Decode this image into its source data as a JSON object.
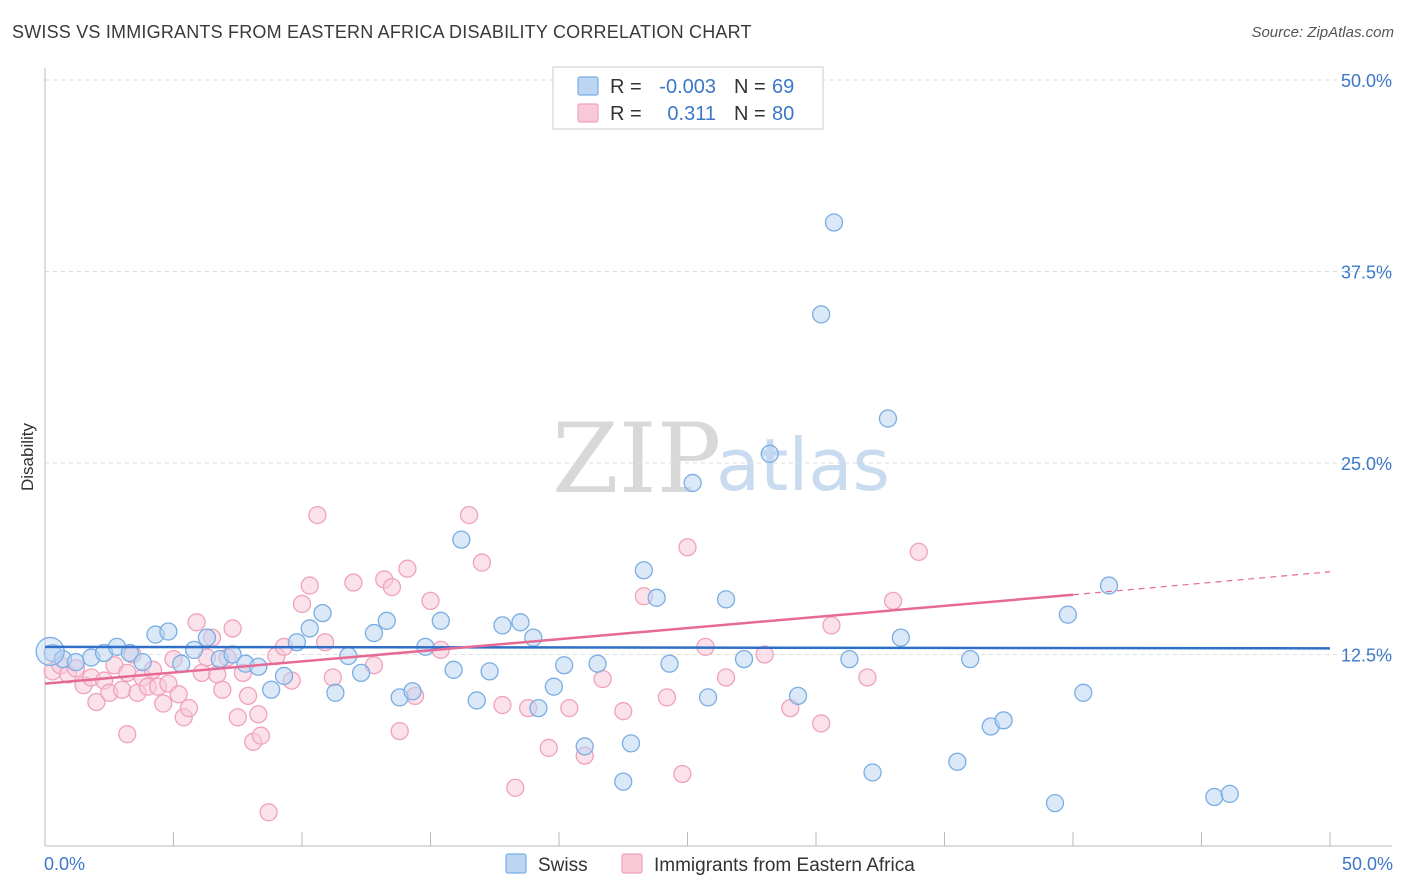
{
  "title": "SWISS VS IMMIGRANTS FROM EASTERN AFRICA DISABILITY CORRELATION CHART",
  "source": "Source: ZipAtlas.com",
  "watermark": {
    "zip": "ZIP",
    "atlas": "atlas"
  },
  "colors": {
    "swiss": "#7aaee3",
    "swiss_line": "#2f6fc7",
    "eafrica": "#f0a2bb",
    "eafrica_line": "#e66a96",
    "axis_text": "#3c78c8",
    "grid": "#dddddd"
  },
  "legend_top": {
    "rows": [
      {
        "r_label": "R =",
        "r_value": "-0.003",
        "n_label": "N =",
        "n_value": "69",
        "series": "swiss"
      },
      {
        "r_label": "R =",
        "r_value": "0.311",
        "n_label": "N =",
        "n_value": "80",
        "series": "eafrica"
      }
    ]
  },
  "chart_data": {
    "type": "scatter",
    "title": "SWISS VS IMMIGRANTS FROM EASTERN AFRICA DISABILITY CORRELATION CHART",
    "xlabel": "",
    "ylabel": "Disability",
    "xlim": [
      0,
      50
    ],
    "ylim": [
      0,
      50
    ],
    "y_ticks": [
      {
        "value": 12.5,
        "label": "12.5%"
      },
      {
        "value": 25.0,
        "label": "25.0%"
      },
      {
        "value": 37.5,
        "label": "37.5%"
      },
      {
        "value": 50.0,
        "label": "50.0%"
      }
    ],
    "x_tick_labels": [
      {
        "value": 0,
        "label": "0.0%"
      },
      {
        "value": 50,
        "label": "50.0%"
      }
    ],
    "grid": true,
    "legend_placement": "bottom-center",
    "series": [
      {
        "name": "Swiss",
        "key": "swiss",
        "trend": {
          "x": [
            0,
            50
          ],
          "y": [
            13.0,
            12.9
          ]
        },
        "points": [
          [
            0.3,
            12.6
          ],
          [
            0.7,
            12.2
          ],
          [
            1.2,
            12.0
          ],
          [
            1.8,
            12.3
          ],
          [
            2.3,
            12.6
          ],
          [
            2.8,
            13.0
          ],
          [
            3.3,
            12.6
          ],
          [
            3.8,
            12.0
          ],
          [
            4.3,
            13.8
          ],
          [
            4.8,
            14.0
          ],
          [
            5.3,
            11.9
          ],
          [
            5.8,
            12.8
          ],
          [
            6.3,
            13.6
          ],
          [
            6.8,
            12.2
          ],
          [
            7.3,
            12.5
          ],
          [
            7.8,
            11.9
          ],
          [
            8.3,
            11.7
          ],
          [
            8.8,
            10.2
          ],
          [
            9.3,
            11.1
          ],
          [
            9.8,
            13.3
          ],
          [
            10.3,
            14.2
          ],
          [
            10.8,
            15.2
          ],
          [
            11.3,
            10.0
          ],
          [
            11.8,
            12.4
          ],
          [
            12.3,
            11.3
          ],
          [
            12.8,
            13.9
          ],
          [
            13.3,
            14.7
          ],
          [
            13.8,
            9.7
          ],
          [
            14.3,
            10.1
          ],
          [
            14.8,
            13.0
          ],
          [
            15.4,
            14.7
          ],
          [
            15.9,
            11.5
          ],
          [
            16.2,
            20.0
          ],
          [
            16.8,
            9.5
          ],
          [
            17.3,
            11.4
          ],
          [
            17.8,
            14.4
          ],
          [
            18.5,
            14.6
          ],
          [
            19.0,
            13.6
          ],
          [
            19.2,
            9.0
          ],
          [
            19.8,
            10.4
          ],
          [
            20.2,
            11.8
          ],
          [
            21.0,
            6.5
          ],
          [
            21.5,
            11.9
          ],
          [
            22.5,
            4.2
          ],
          [
            22.8,
            6.7
          ],
          [
            23.3,
            18.0
          ],
          [
            24.3,
            11.9
          ],
          [
            23.8,
            16.2
          ],
          [
            25.2,
            23.7
          ],
          [
            25.8,
            9.7
          ],
          [
            26.5,
            16.1
          ],
          [
            27.2,
            12.2
          ],
          [
            28.2,
            25.6
          ],
          [
            29.3,
            9.8
          ],
          [
            30.2,
            34.7
          ],
          [
            30.7,
            40.7
          ],
          [
            31.3,
            12.2
          ],
          [
            32.2,
            4.8
          ],
          [
            32.8,
            27.9
          ],
          [
            33.3,
            13.6
          ],
          [
            35.5,
            5.5
          ],
          [
            36.0,
            12.2
          ],
          [
            36.8,
            7.8
          ],
          [
            37.3,
            8.2
          ],
          [
            39.3,
            2.8
          ],
          [
            39.8,
            15.1
          ],
          [
            40.4,
            10.0
          ],
          [
            41.4,
            17.0
          ],
          [
            45.5,
            3.2
          ],
          [
            46.1,
            3.4
          ]
        ]
      },
      {
        "name": "Immigrants from Eastern Africa",
        "key": "eafrica",
        "trend": {
          "x": [
            0,
            40
          ],
          "y": [
            10.6,
            16.4
          ]
        },
        "trend_dashed": {
          "x": [
            40,
            50
          ],
          "y": [
            16.4,
            17.9
          ]
        },
        "points": [
          [
            0.3,
            11.4
          ],
          [
            0.6,
            11.8
          ],
          [
            0.9,
            11.2
          ],
          [
            1.2,
            11.6
          ],
          [
            1.5,
            10.5
          ],
          [
            1.8,
            11.0
          ],
          [
            2.0,
            9.4
          ],
          [
            2.3,
            10.8
          ],
          [
            2.5,
            10.0
          ],
          [
            2.7,
            11.8
          ],
          [
            3.0,
            10.2
          ],
          [
            3.2,
            11.3
          ],
          [
            3.4,
            12.5
          ],
          [
            3.6,
            10.0
          ],
          [
            3.8,
            11.0
          ],
          [
            4.0,
            10.4
          ],
          [
            4.2,
            11.5
          ],
          [
            4.4,
            10.4
          ],
          [
            4.6,
            9.3
          ],
          [
            4.8,
            10.6
          ],
          [
            5.0,
            12.2
          ],
          [
            5.2,
            9.9
          ],
          [
            5.4,
            8.4
          ],
          [
            5.6,
            9.0
          ],
          [
            5.9,
            14.6
          ],
          [
            6.1,
            11.3
          ],
          [
            6.3,
            12.3
          ],
          [
            6.5,
            13.6
          ],
          [
            6.7,
            11.2
          ],
          [
            6.9,
            10.2
          ],
          [
            7.1,
            12.3
          ],
          [
            7.3,
            14.2
          ],
          [
            7.5,
            8.4
          ],
          [
            7.7,
            11.3
          ],
          [
            7.9,
            9.8
          ],
          [
            8.1,
            6.8
          ],
          [
            8.4,
            7.2
          ],
          [
            8.7,
            2.2
          ],
          [
            9.0,
            12.4
          ],
          [
            9.3,
            13.0
          ],
          [
            9.6,
            10.8
          ],
          [
            10.0,
            15.8
          ],
          [
            10.3,
            17.0
          ],
          [
            10.6,
            21.6
          ],
          [
            10.9,
            13.3
          ],
          [
            11.2,
            11.0
          ],
          [
            12.0,
            17.2
          ],
          [
            12.8,
            11.8
          ],
          [
            13.2,
            17.4
          ],
          [
            13.5,
            16.9
          ],
          [
            13.8,
            7.5
          ],
          [
            14.1,
            18.1
          ],
          [
            14.4,
            9.8
          ],
          [
            15.0,
            16.0
          ],
          [
            15.4,
            12.8
          ],
          [
            16.5,
            21.6
          ],
          [
            17.0,
            18.5
          ],
          [
            17.8,
            9.2
          ],
          [
            18.3,
            3.8
          ],
          [
            18.8,
            9.0
          ],
          [
            19.6,
            6.4
          ],
          [
            20.4,
            9.0
          ],
          [
            21.0,
            5.9
          ],
          [
            21.7,
            10.9
          ],
          [
            22.5,
            8.8
          ],
          [
            23.3,
            16.3
          ],
          [
            24.2,
            9.7
          ],
          [
            24.8,
            4.7
          ],
          [
            25.0,
            19.5
          ],
          [
            25.7,
            13.0
          ],
          [
            26.5,
            11.0
          ],
          [
            28.0,
            12.5
          ],
          [
            29.0,
            9.0
          ],
          [
            30.2,
            8.0
          ],
          [
            30.6,
            14.4
          ],
          [
            32.0,
            11.0
          ],
          [
            33.0,
            16.0
          ],
          [
            34.0,
            19.2
          ],
          [
            3.2,
            7.3
          ],
          [
            8.3,
            8.6
          ]
        ]
      }
    ]
  }
}
